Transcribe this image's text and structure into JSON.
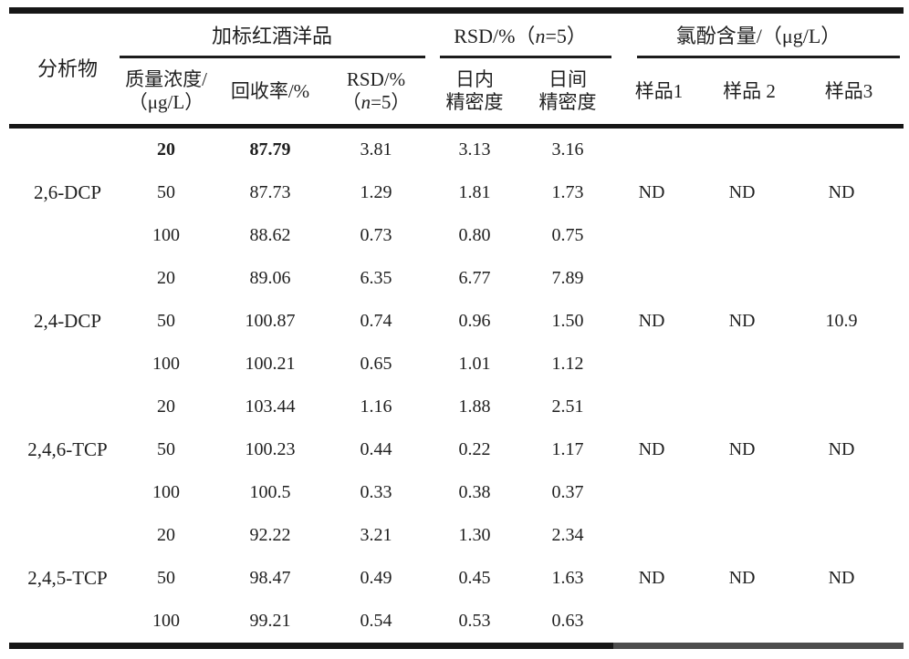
{
  "page": {
    "background": "#ffffff",
    "rule_color": "#161616"
  },
  "table": {
    "analyte_header": "分析物",
    "groups": {
      "spiked_wine": "加标红酒洋品",
      "rsd_pre": "RSD/%（",
      "rsd_var": "n",
      "rsd_post": "=5）",
      "chlorophenol_content": "氯酚含量/（μg/L）"
    },
    "subheaders": {
      "conc_line1": "质量浓度/",
      "conc_line2": "（μg/L）",
      "recovery": "回收率/%",
      "rsd_line1": "RSD/%",
      "rsd_line2_pre": "（",
      "rsd_line2_var": "n",
      "rsd_line2_post": "=5）",
      "intra_line1": "日内",
      "intra_line2": "精密度",
      "inter_line1": "日间",
      "inter_line2": "精密度",
      "sample1": "样品1",
      "sample2": "样品 2",
      "sample3": "样品3"
    },
    "blocks": [
      {
        "analyte": "2,6-DCP",
        "rows": [
          {
            "conc": "20",
            "recovery": "87.79",
            "rsd": "3.81",
            "intra": "3.13",
            "inter": "3.16",
            "bold": true
          },
          {
            "conc": "50",
            "recovery": "87.73",
            "rsd": "1.29",
            "intra": "1.81",
            "inter": "1.73"
          },
          {
            "conc": "100",
            "recovery": "88.62",
            "rsd": "0.73",
            "intra": "0.80",
            "inter": "0.75"
          }
        ],
        "samples": [
          "ND",
          "ND",
          "ND"
        ]
      },
      {
        "analyte": "2,4-DCP",
        "rows": [
          {
            "conc": "20",
            "recovery": "89.06",
            "rsd": "6.35",
            "intra": "6.77",
            "inter": "7.89"
          },
          {
            "conc": "50",
            "recovery": "100.87",
            "rsd": "0.74",
            "intra": "0.96",
            "inter": "1.50"
          },
          {
            "conc": "100",
            "recovery": "100.21",
            "rsd": "0.65",
            "intra": "1.01",
            "inter": "1.12"
          }
        ],
        "samples": [
          "ND",
          "ND",
          "10.9"
        ]
      },
      {
        "analyte": "2,4,6-TCP",
        "rows": [
          {
            "conc": "20",
            "recovery": "103.44",
            "rsd": "1.16",
            "intra": "1.88",
            "inter": "2.51"
          },
          {
            "conc": "50",
            "recovery": "100.23",
            "rsd": "0.44",
            "intra": "0.22",
            "inter": "1.17"
          },
          {
            "conc": "100",
            "recovery": "100.5",
            "rsd": "0.33",
            "intra": "0.38",
            "inter": "0.37"
          }
        ],
        "samples": [
          "ND",
          "ND",
          "ND"
        ]
      },
      {
        "analyte": "2,4,5-TCP",
        "rows": [
          {
            "conc": "20",
            "recovery": "92.22",
            "rsd": "3.21",
            "intra": "1.30",
            "inter": "2.34"
          },
          {
            "conc": "50",
            "recovery": "98.47",
            "rsd": "0.49",
            "intra": "0.45",
            "inter": "1.63"
          },
          {
            "conc": "100",
            "recovery": "99.21",
            "rsd": "0.54",
            "intra": "0.53",
            "inter": "0.63"
          }
        ],
        "samples": [
          "ND",
          "ND",
          "ND"
        ]
      }
    ]
  }
}
